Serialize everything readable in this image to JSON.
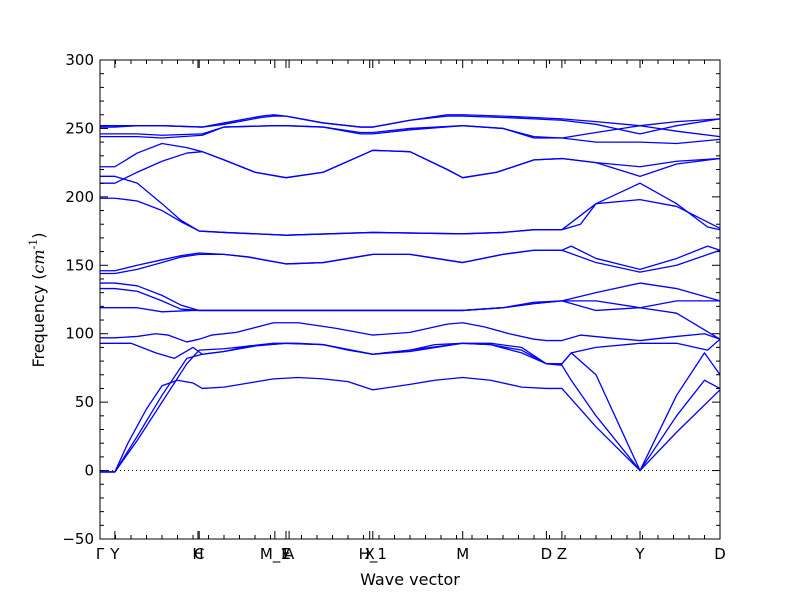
{
  "chart_data": {
    "type": "line",
    "xlabel": "Wave vector",
    "ylabel": "Frequency ($cm^{-1}$)",
    "ylim": [
      -50,
      300
    ],
    "xlim": [
      0,
      1
    ],
    "y_ticks": [
      -50,
      0,
      50,
      100,
      150,
      200,
      250,
      300
    ],
    "x_ticks": [
      {
        "pos": 0.0,
        "label": "Γ"
      },
      {
        "pos": 0.024,
        "label": "Y"
      },
      {
        "pos": 0.158,
        "label": "H"
      },
      {
        "pos": 0.16,
        "label": "C"
      },
      {
        "pos": 0.282,
        "label": "M_1"
      },
      {
        "pos": 0.3,
        "label": "E"
      },
      {
        "pos": 0.305,
        "label": "A"
      },
      {
        "pos": 0.435,
        "label": "X"
      },
      {
        "pos": 0.44,
        "label": "H_1"
      },
      {
        "pos": 0.585,
        "label": "M"
      },
      {
        "pos": 0.72,
        "label": "D"
      },
      {
        "pos": 0.745,
        "label": "Z"
      },
      {
        "pos": 0.871,
        "label": "Y"
      },
      {
        "pos": 1.0,
        "label": "D"
      }
    ],
    "zero_line": true,
    "line_color": "#0000ff",
    "series": [
      {
        "x": [
          0,
          0.024,
          0.045,
          0.075,
          0.1,
          0.125,
          0.15,
          0.165,
          0.2,
          0.24,
          0.28,
          0.32,
          0.36,
          0.4,
          0.44,
          0.5,
          0.54,
          0.585,
          0.63,
          0.68,
          0.72,
          0.745,
          0.8,
          0.871,
          0.93,
          1.0
        ],
        "y": [
          -1,
          -1,
          20,
          45,
          62,
          66,
          64,
          60,
          61,
          64,
          67,
          68,
          67,
          65,
          59,
          63,
          66,
          68,
          66,
          61,
          60,
          60,
          32,
          0,
          28,
          59
        ]
      },
      {
        "x": [
          0,
          0.024,
          0.06,
          0.1,
          0.14,
          0.16,
          0.2,
          0.24,
          0.28,
          0.32,
          0.36,
          0.4,
          0.44,
          0.5,
          0.54,
          0.585,
          0.63,
          0.68,
          0.72,
          0.745,
          0.76,
          0.8,
          0.871,
          0.93,
          0.975,
          1.0
        ],
        "y": [
          -1,
          -1,
          22,
          50,
          78,
          88,
          89,
          91,
          93,
          93,
          92,
          88,
          85,
          88,
          92,
          93,
          92,
          88,
          78,
          77,
          66,
          40,
          0,
          40,
          66,
          60
        ]
      },
      {
        "x": [
          0,
          0.024,
          0.06,
          0.1,
          0.14,
          0.165,
          0.2,
          0.24,
          0.3,
          0.36,
          0.44,
          0.5,
          0.585,
          0.63,
          0.68,
          0.72,
          0.745,
          0.76,
          0.8,
          0.871,
          0.93,
          0.975,
          1.0
        ],
        "y": [
          -1,
          -1,
          25,
          55,
          82,
          85,
          87,
          91,
          93,
          92,
          85,
          87,
          93,
          92,
          86,
          78,
          78,
          86,
          70,
          0,
          55,
          86,
          70
        ]
      },
      {
        "x": [
          0,
          0.024,
          0.05,
          0.09,
          0.12,
          0.135,
          0.15,
          0.165,
          0.2,
          0.25,
          0.3,
          0.36,
          0.44,
          0.5,
          0.585,
          0.63,
          0.68,
          0.72,
          0.745,
          0.76,
          0.8,
          0.871,
          0.93,
          0.98,
          1.0
        ],
        "y": [
          93,
          93,
          93,
          86,
          82,
          86,
          90,
          85,
          87,
          91,
          93,
          92,
          85,
          88,
          93,
          93,
          90,
          78,
          78,
          86,
          90,
          93,
          93,
          88,
          96
        ]
      },
      {
        "x": [
          0,
          0.024,
          0.06,
          0.09,
          0.11,
          0.14,
          0.16,
          0.18,
          0.22,
          0.28,
          0.32,
          0.38,
          0.44,
          0.5,
          0.56,
          0.585,
          0.62,
          0.66,
          0.7,
          0.72,
          0.745,
          0.775,
          0.82,
          0.871,
          0.93,
          0.975,
          1.0
        ],
        "y": [
          97,
          97,
          98,
          100,
          99,
          94,
          96,
          99,
          101,
          108,
          108,
          104,
          99,
          101,
          107,
          108,
          105,
          100,
          96,
          95,
          95,
          99,
          97,
          95,
          98,
          100,
          96
        ]
      },
      {
        "x": [
          0,
          0.024,
          0.06,
          0.1,
          0.15,
          0.2,
          0.3,
          0.4,
          0.44,
          0.5,
          0.585,
          0.65,
          0.7,
          0.745,
          0.8,
          0.871,
          0.93,
          1.0
        ],
        "y": [
          119,
          119,
          119,
          116,
          117,
          117,
          117,
          117,
          117,
          117,
          117,
          119,
          123,
          124,
          117,
          119,
          115,
          96
        ]
      },
      {
        "x": [
          0,
          0.024,
          0.06,
          0.1,
          0.13,
          0.16,
          0.2,
          0.3,
          0.44,
          0.585,
          0.65,
          0.7,
          0.745,
          0.8,
          0.871,
          0.93,
          1.0
        ],
        "y": [
          133,
          133,
          131,
          124,
          118,
          117,
          117,
          117,
          117,
          117,
          119,
          122,
          124,
          124,
          119,
          124,
          124
        ]
      },
      {
        "x": [
          0,
          0.024,
          0.06,
          0.1,
          0.13,
          0.16,
          0.2,
          0.3,
          0.44,
          0.585,
          0.65,
          0.7,
          0.745,
          0.8,
          0.871,
          0.93,
          1.0
        ],
        "y": [
          137,
          137,
          135,
          128,
          121,
          117,
          117,
          117,
          117,
          117,
          119,
          122,
          124,
          130,
          137,
          133,
          124
        ]
      },
      {
        "x": [
          0,
          0.024,
          0.06,
          0.1,
          0.13,
          0.16,
          0.2,
          0.24,
          0.3,
          0.36,
          0.44,
          0.5,
          0.585,
          0.65,
          0.7,
          0.745,
          0.8,
          0.871,
          0.93,
          1.0
        ],
        "y": [
          144,
          144,
          147,
          152,
          156,
          158,
          158,
          156,
          151,
          152,
          158,
          158,
          152,
          158,
          161,
          161,
          152,
          145,
          150,
          161
        ]
      },
      {
        "x": [
          0,
          0.024,
          0.06,
          0.1,
          0.13,
          0.16,
          0.2,
          0.24,
          0.3,
          0.36,
          0.44,
          0.5,
          0.585,
          0.65,
          0.7,
          0.745,
          0.76,
          0.8,
          0.871,
          0.93,
          0.98,
          1.0
        ],
        "y": [
          146,
          146,
          150,
          154,
          157,
          159,
          158,
          156,
          151,
          152,
          158,
          158,
          152,
          158,
          161,
          161,
          164,
          155,
          147,
          155,
          164,
          161
        ]
      },
      {
        "x": [
          0,
          0.024,
          0.06,
          0.1,
          0.13,
          0.16,
          0.2,
          0.3,
          0.44,
          0.585,
          0.65,
          0.7,
          0.745,
          0.8,
          0.871,
          0.93,
          1.0
        ],
        "y": [
          199,
          199,
          197,
          190,
          182,
          175,
          174,
          172,
          174,
          173,
          174,
          176,
          176,
          195,
          198,
          193,
          177
        ]
      },
      {
        "x": [
          0,
          0.024,
          0.06,
          0.1,
          0.13,
          0.16,
          0.2,
          0.3,
          0.44,
          0.585,
          0.65,
          0.7,
          0.745,
          0.775,
          0.8,
          0.871,
          0.93,
          0.98,
          1.0
        ],
        "y": [
          215,
          215,
          210,
          195,
          183,
          175,
          174,
          172,
          174,
          173,
          174,
          176,
          176,
          180,
          195,
          210,
          195,
          178,
          176
        ]
      },
      {
        "x": [
          0,
          0.024,
          0.06,
          0.1,
          0.14,
          0.165,
          0.2,
          0.25,
          0.3,
          0.36,
          0.42,
          0.44,
          0.5,
          0.56,
          0.585,
          0.64,
          0.7,
          0.745,
          0.8,
          0.871,
          0.93,
          1.0
        ],
        "y": [
          222,
          222,
          232,
          239,
          236,
          233,
          227,
          218,
          214,
          218,
          230,
          234,
          233,
          220,
          214,
          218,
          227,
          228,
          225,
          222,
          226,
          228
        ]
      },
      {
        "x": [
          0,
          0.024,
          0.06,
          0.1,
          0.14,
          0.165,
          0.2,
          0.25,
          0.3,
          0.36,
          0.42,
          0.44,
          0.5,
          0.56,
          0.585,
          0.64,
          0.7,
          0.745,
          0.8,
          0.871,
          0.93,
          1.0
        ],
        "y": [
          210,
          210,
          218,
          226,
          232,
          233,
          227,
          218,
          214,
          218,
          230,
          234,
          233,
          220,
          214,
          218,
          227,
          228,
          225,
          215,
          224,
          228
        ]
      },
      {
        "x": [
          0,
          0.024,
          0.06,
          0.1,
          0.165,
          0.2,
          0.28,
          0.3,
          0.36,
          0.42,
          0.44,
          0.5,
          0.585,
          0.65,
          0.7,
          0.745,
          0.8,
          0.871,
          0.93,
          1.0
        ],
        "y": [
          244,
          244,
          244,
          243,
          245,
          251,
          252,
          252,
          251,
          246,
          246,
          249,
          252,
          250,
          243,
          243,
          240,
          240,
          239,
          242
        ]
      },
      {
        "x": [
          0,
          0.024,
          0.06,
          0.1,
          0.165,
          0.2,
          0.28,
          0.3,
          0.36,
          0.42,
          0.44,
          0.5,
          0.585,
          0.65,
          0.7,
          0.745,
          0.8,
          0.871,
          0.93,
          1.0
        ],
        "y": [
          246,
          246,
          246,
          245,
          246,
          251,
          252,
          252,
          251,
          247,
          247,
          250,
          252,
          250,
          244,
          243,
          247,
          252,
          248,
          244
        ]
      },
      {
        "x": [
          0,
          0.024,
          0.06,
          0.1,
          0.165,
          0.2,
          0.26,
          0.28,
          0.3,
          0.36,
          0.42,
          0.44,
          0.5,
          0.56,
          0.585,
          0.65,
          0.7,
          0.745,
          0.8,
          0.871,
          0.93,
          1.0
        ],
        "y": [
          251,
          251,
          252,
          252,
          251,
          254,
          259,
          260,
          259,
          254,
          251,
          251,
          256,
          260,
          260,
          259,
          258,
          257,
          255,
          252,
          255,
          257
        ]
      },
      {
        "x": [
          0,
          0.024,
          0.06,
          0.1,
          0.165,
          0.2,
          0.26,
          0.28,
          0.3,
          0.36,
          0.42,
          0.44,
          0.5,
          0.56,
          0.585,
          0.65,
          0.7,
          0.745,
          0.8,
          0.871,
          0.93,
          1.0
        ],
        "y": [
          252,
          252,
          252,
          252,
          251,
          253,
          258,
          259,
          259,
          254,
          251,
          251,
          256,
          259,
          259,
          258,
          257,
          256,
          253,
          246,
          252,
          257
        ]
      }
    ]
  }
}
